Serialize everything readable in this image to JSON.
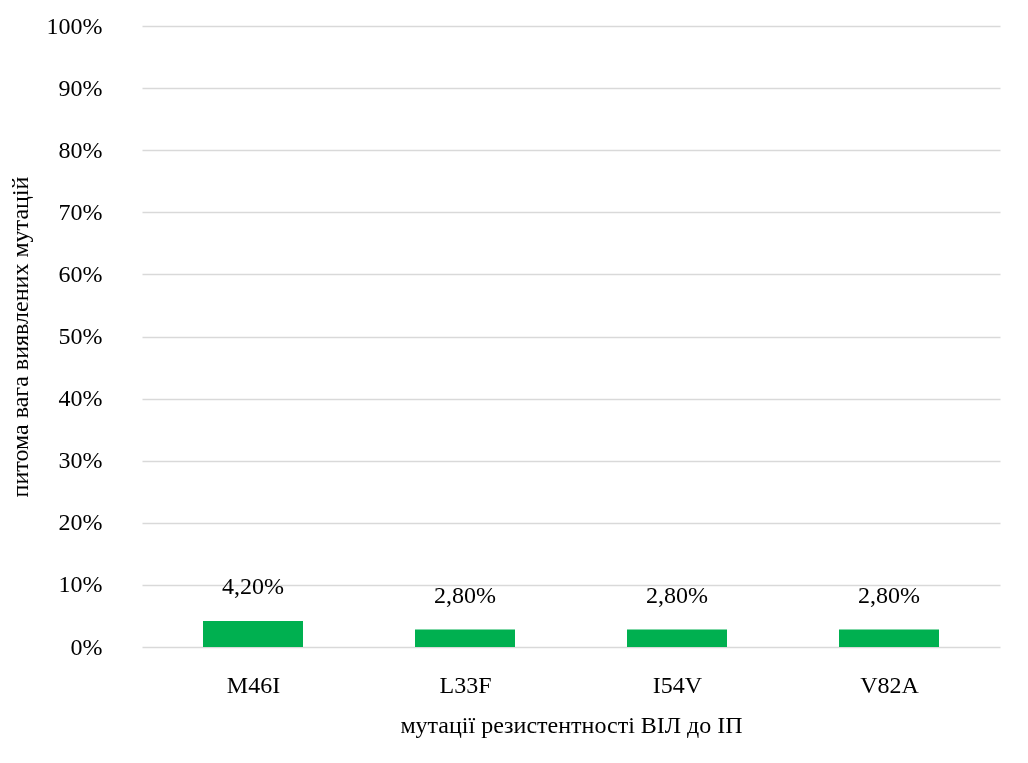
{
  "chart_data": {
    "type": "bar",
    "xlabel": "мутації резистентності ВІЛ до ІП",
    "ylabel": "питома вага виявлених мутацій",
    "categories": [
      "M46I",
      "L33F",
      "I54V",
      "V82A"
    ],
    "values": [
      4.2,
      2.8,
      2.8,
      2.8
    ],
    "value_labels": [
      "4,20%",
      "2,80%",
      "2,80%",
      "2,80%"
    ],
    "color": "#00b050",
    "ylim": [
      0,
      100
    ],
    "yticks": [
      {
        "value": 0,
        "label": "0%"
      },
      {
        "value": 10,
        "label": "10%"
      },
      {
        "value": 20,
        "label": "20%"
      },
      {
        "value": 30,
        "label": "30%"
      },
      {
        "value": 40,
        "label": "40%"
      },
      {
        "value": 50,
        "label": "50%"
      },
      {
        "value": 60,
        "label": "60%"
      },
      {
        "value": 70,
        "label": "70%"
      },
      {
        "value": 80,
        "label": "80%"
      },
      {
        "value": 90,
        "label": "90%"
      },
      {
        "value": 100,
        "label": "100%"
      }
    ],
    "grid": "y"
  }
}
